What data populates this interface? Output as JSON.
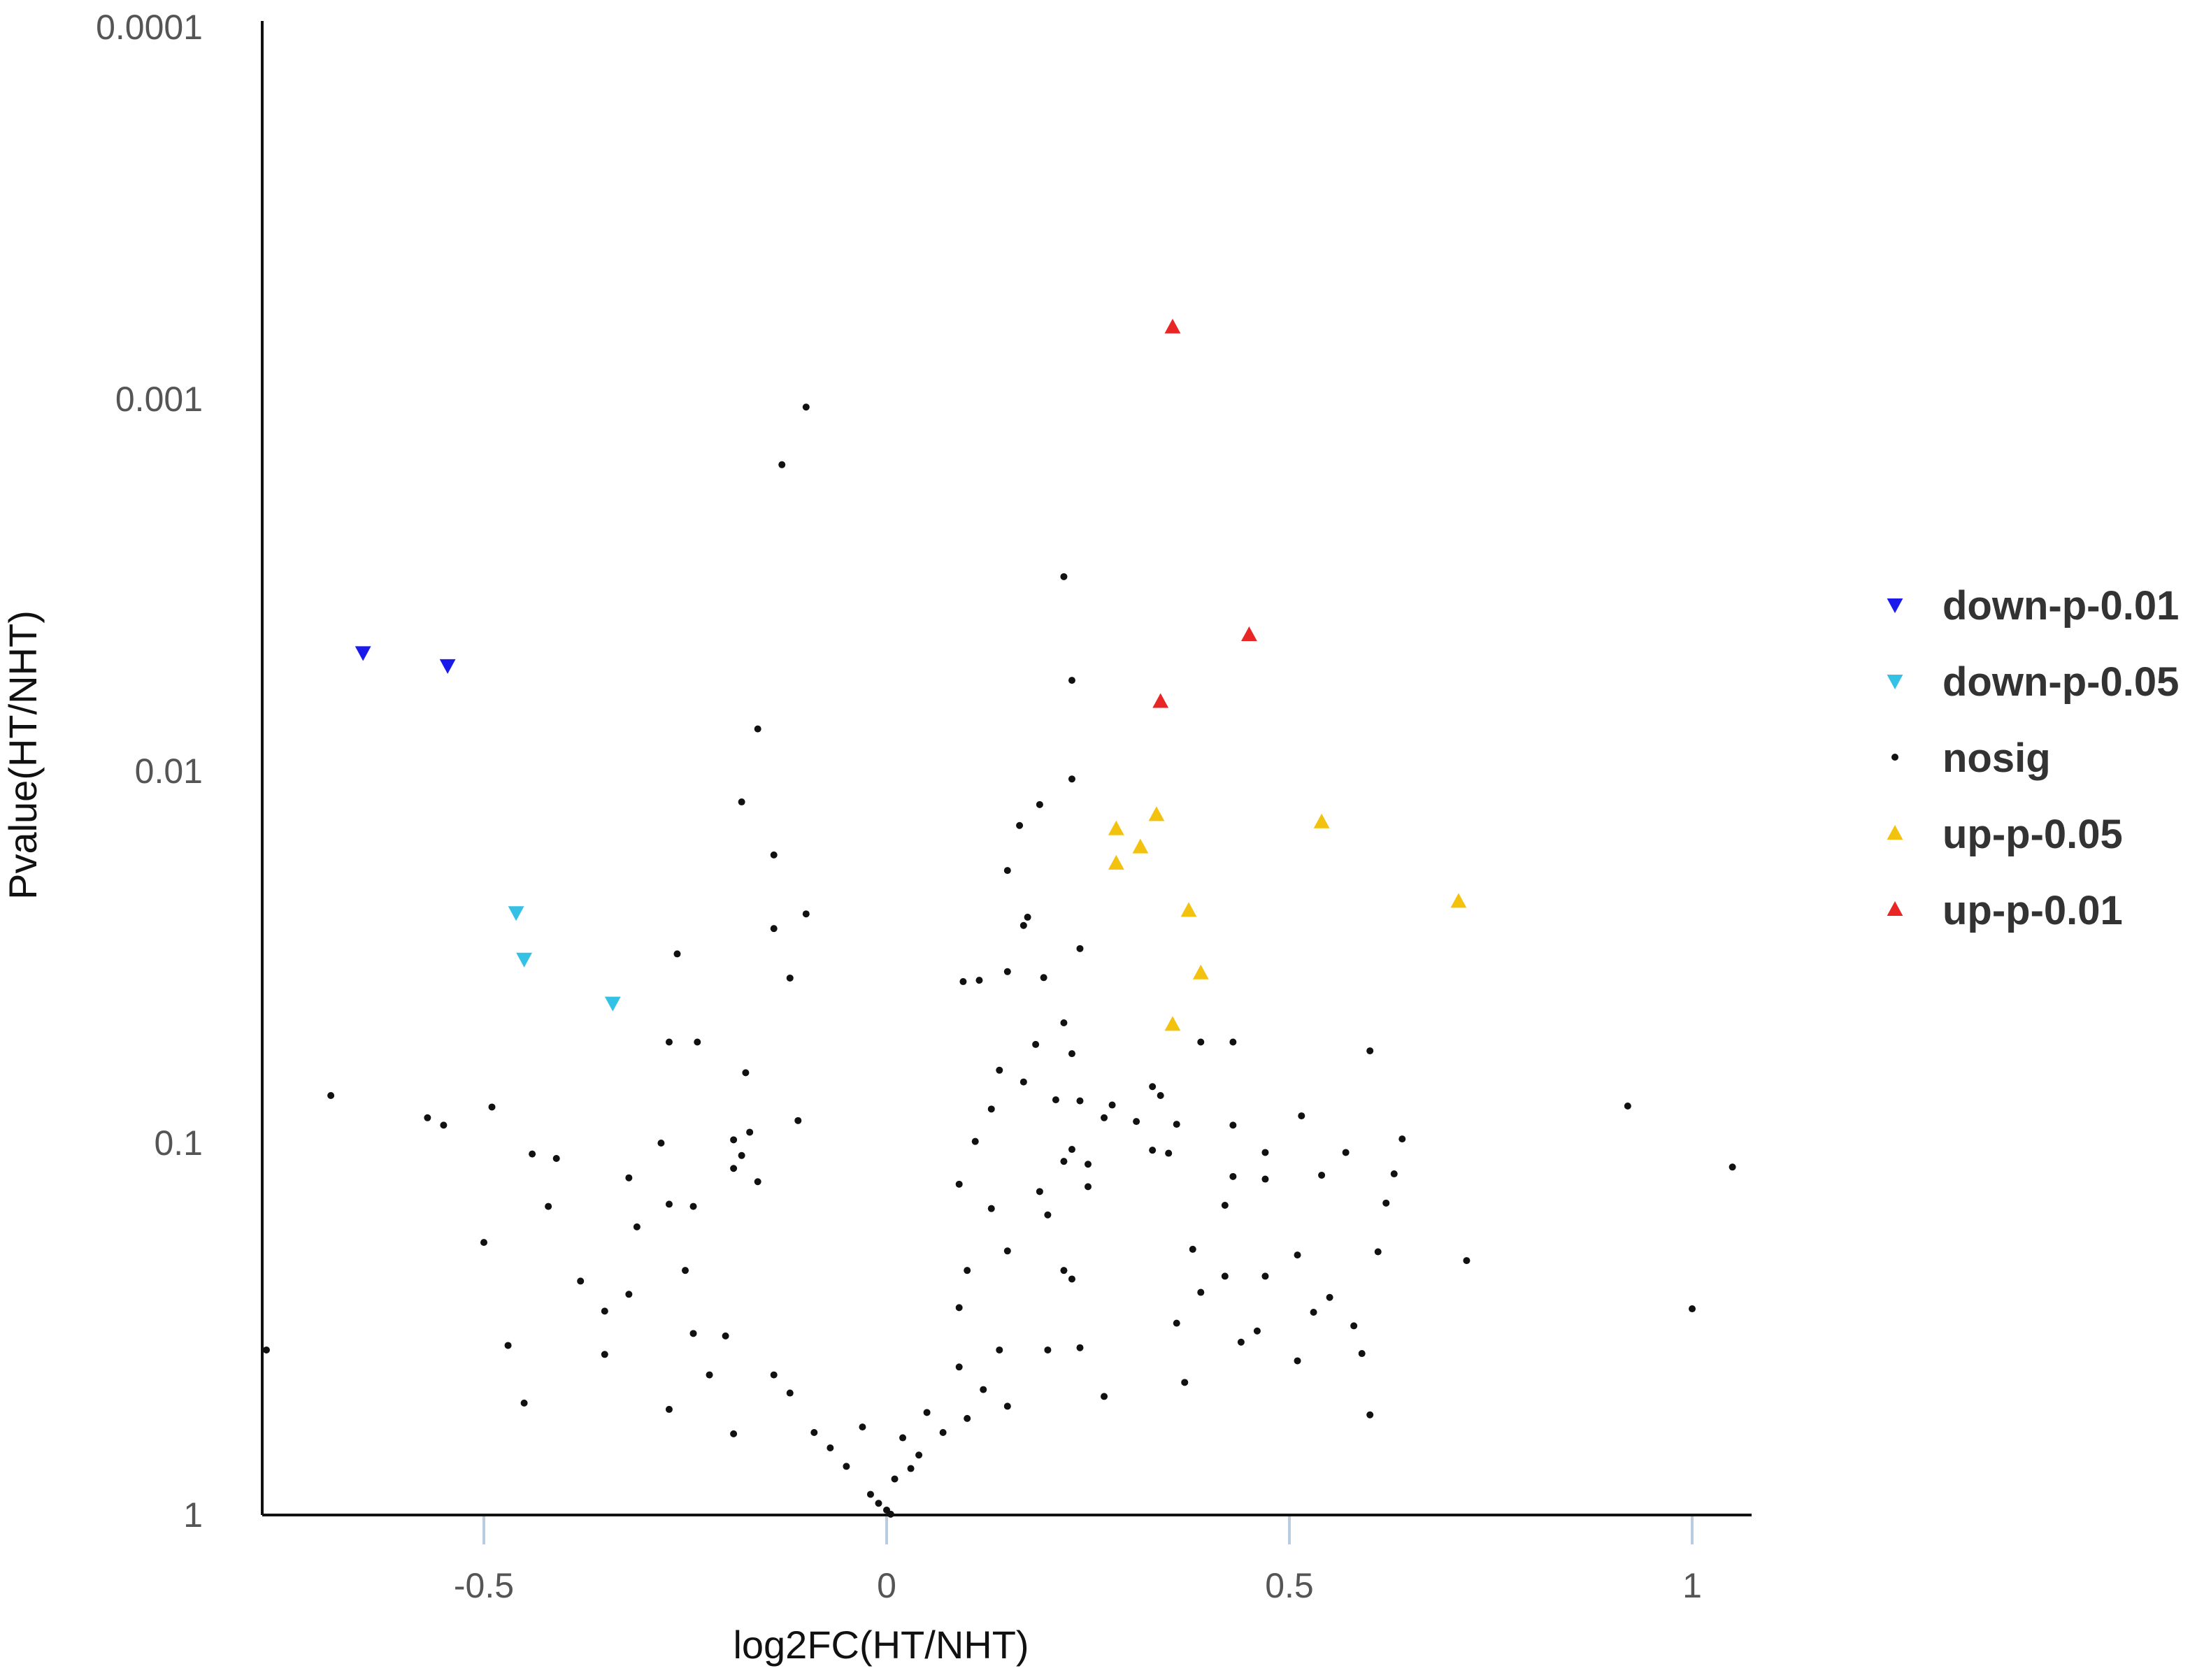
{
  "chart_data": {
    "type": "scatter",
    "title": "",
    "xlabel": "log2FC(HT/NHT)",
    "ylabel": "Pvalue(HT/NHT)",
    "xlim": [
      -0.775,
      1.07
    ],
    "ylim": [
      1,
      0.0001
    ],
    "y_scale": "log10 (reversed: 1 at bottom, 0.0001 at top)",
    "x_ticks": [
      -0.5,
      0,
      0.5,
      1
    ],
    "x_tick_labels": [
      "-0.5",
      "0",
      "0.5",
      "1"
    ],
    "y_ticks": [
      0.0001,
      0.001,
      0.01,
      0.1,
      1
    ],
    "y_tick_labels": [
      "0.0001",
      "0.001",
      "0.01",
      "0.1",
      "1"
    ],
    "grid": false,
    "legend_position": "right",
    "legend": [
      {
        "label": "down-p-0.01",
        "color": "#1a1aeb",
        "marker": "triangle-down"
      },
      {
        "label": "down-p-0.05",
        "color": "#33c1e6",
        "marker": "triangle-down"
      },
      {
        "label": "nosig",
        "color": "#111111",
        "marker": "dot"
      },
      {
        "label": "up-p-0.05",
        "color": "#f2c20f",
        "marker": "triangle-up"
      },
      {
        "label": "up-p-0.01",
        "color": "#e82626",
        "marker": "triangle-up"
      }
    ],
    "series": [
      {
        "name": "down-p-0.01",
        "points": [
          [
            -0.65,
            0.0048
          ],
          [
            -0.545,
            0.0052
          ]
        ]
      },
      {
        "name": "down-p-0.05",
        "points": [
          [
            -0.46,
            0.024
          ],
          [
            -0.45,
            0.032
          ],
          [
            -0.34,
            0.042
          ]
        ]
      },
      {
        "name": "up-p-0.01",
        "points": [
          [
            0.355,
            0.00064
          ],
          [
            0.45,
            0.0043
          ],
          [
            0.34,
            0.0065
          ]
        ]
      },
      {
        "name": "up-p-0.05",
        "points": [
          [
            0.54,
            0.0137
          ],
          [
            0.335,
            0.0131
          ],
          [
            0.285,
            0.0143
          ],
          [
            0.315,
            0.016
          ],
          [
            0.285,
            0.0177
          ],
          [
            0.71,
            0.0224
          ],
          [
            0.375,
            0.0237
          ],
          [
            0.39,
            0.0349
          ],
          [
            0.355,
            0.048
          ]
        ]
      },
      {
        "name": "nosig",
        "points": [
          [
            -0.1,
            0.00105
          ],
          [
            -0.13,
            0.0015
          ],
          [
            0.22,
            0.003
          ],
          [
            0.23,
            0.0057
          ],
          [
            -0.16,
            0.0077
          ],
          [
            -0.18,
            0.0121
          ],
          [
            0.23,
            0.0105
          ],
          [
            0.19,
            0.0123
          ],
          [
            0.165,
            0.014
          ],
          [
            -0.14,
            0.0168
          ],
          [
            0.15,
            0.0185
          ],
          [
            -0.1,
            0.0242
          ],
          [
            0.175,
            0.0247
          ],
          [
            0.17,
            0.026
          ],
          [
            -0.14,
            0.0265
          ],
          [
            0.24,
            0.03
          ],
          [
            -0.26,
            0.031
          ],
          [
            0.115,
            0.0365
          ],
          [
            0.15,
            0.0346
          ],
          [
            0.195,
            0.0359
          ],
          [
            -0.12,
            0.036
          ],
          [
            0.095,
            0.0368
          ],
          [
            0.22,
            0.0475
          ],
          [
            0.185,
            0.0543
          ],
          [
            -0.27,
            0.0535
          ],
          [
            -0.235,
            0.0535
          ],
          [
            0.23,
            0.0575
          ],
          [
            0.39,
            0.0535
          ],
          [
            0.43,
            0.0535
          ],
          [
            0.6,
            0.0565
          ],
          [
            0.14,
            0.0637
          ],
          [
            -0.69,
            0.0745
          ],
          [
            -0.175,
            0.0647
          ],
          [
            0.21,
            0.0765
          ],
          [
            0.24,
            0.077
          ],
          [
            0.28,
            0.079
          ],
          [
            0.33,
            0.0705
          ],
          [
            0.34,
            0.0745
          ],
          [
            0.17,
            0.0685
          ],
          [
            0.13,
            0.081
          ],
          [
            -0.57,
            0.0855
          ],
          [
            -0.49,
            0.08
          ],
          [
            0.92,
            0.0795
          ],
          [
            0.515,
            0.0845
          ],
          [
            0.43,
            0.0895
          ],
          [
            -0.55,
            0.0895
          ],
          [
            0.64,
            0.0975
          ],
          [
            0.27,
            0.0855
          ],
          [
            0.31,
            0.0875
          ],
          [
            0.36,
            0.089
          ],
          [
            -0.17,
            0.0935
          ],
          [
            -0.11,
            0.087
          ],
          [
            -0.19,
            0.098
          ],
          [
            -0.28,
            0.1
          ],
          [
            0.23,
            0.104
          ],
          [
            0.11,
            0.099
          ],
          [
            0.33,
            0.1045
          ],
          [
            0.35,
            0.1065
          ],
          [
            0.47,
            0.106
          ],
          [
            0.57,
            0.106
          ],
          [
            -0.44,
            0.107
          ],
          [
            -0.41,
            0.11
          ],
          [
            -0.18,
            0.108
          ],
          [
            0.25,
            0.114
          ],
          [
            1.05,
            0.116
          ],
          [
            0.22,
            0.112
          ],
          [
            -0.19,
            0.117
          ],
          [
            0.43,
            0.123
          ],
          [
            0.47,
            0.125
          ],
          [
            0.54,
            0.122
          ],
          [
            0.63,
            0.121
          ],
          [
            -0.32,
            0.124
          ],
          [
            0.09,
            0.129
          ],
          [
            -0.16,
            0.127
          ],
          [
            0.19,
            0.135
          ],
          [
            0.25,
            0.131
          ],
          [
            -0.42,
            0.148
          ],
          [
            0.42,
            0.147
          ],
          [
            0.62,
            0.145
          ],
          [
            -0.27,
            0.146
          ],
          [
            -0.24,
            0.148
          ],
          [
            0.13,
            0.15
          ],
          [
            0.2,
            0.156
          ],
          [
            -0.5,
            0.185
          ],
          [
            -0.31,
            0.168
          ],
          [
            0.38,
            0.193
          ],
          [
            0.51,
            0.2
          ],
          [
            0.72,
            0.207
          ],
          [
            0.61,
            0.196
          ],
          [
            0.15,
            0.195
          ],
          [
            -0.25,
            0.22
          ],
          [
            -0.38,
            0.235
          ],
          [
            0.42,
            0.228
          ],
          [
            0.47,
            0.228
          ],
          [
            0.1,
            0.22
          ],
          [
            0.22,
            0.22
          ],
          [
            0.23,
            0.232
          ],
          [
            -0.32,
            0.255
          ],
          [
            0.39,
            0.252
          ],
          [
            1.0,
            0.279
          ],
          [
            -0.35,
            0.283
          ],
          [
            0.09,
            0.277
          ],
          [
            0.58,
            0.31
          ],
          [
            0.46,
            0.32
          ],
          [
            0.53,
            0.285
          ],
          [
            0.55,
            0.26
          ],
          [
            -0.24,
            0.325
          ],
          [
            -0.2,
            0.33
          ],
          [
            0.36,
            0.305
          ],
          [
            -0.77,
            0.36
          ],
          [
            -0.47,
            0.35
          ],
          [
            0.59,
            0.368
          ],
          [
            0.51,
            0.385
          ],
          [
            0.24,
            0.355
          ],
          [
            0.2,
            0.36
          ],
          [
            -0.35,
            0.37
          ],
          [
            0.44,
            0.343
          ],
          [
            -0.22,
            0.42
          ],
          [
            0.37,
            0.44
          ],
          [
            -0.45,
            0.5
          ],
          [
            0.6,
            0.538
          ],
          [
            0.27,
            0.48
          ],
          [
            -0.27,
            0.52
          ],
          [
            0.05,
            0.53
          ],
          [
            0.15,
            0.51
          ],
          [
            -0.03,
            0.58
          ],
          [
            0.02,
            0.62
          ],
          [
            0.07,
            0.6
          ],
          [
            -0.19,
            0.605
          ],
          [
            -0.09,
            0.6
          ],
          [
            0.04,
            0.69
          ],
          [
            -0.05,
            0.74
          ],
          [
            0.01,
            0.8
          ],
          [
            -0.02,
            0.88
          ],
          [
            0.0,
            0.97
          ],
          [
            0.005,
            0.995
          ],
          [
            -0.01,
            0.93
          ],
          [
            0.03,
            0.75
          ],
          [
            -0.07,
            0.66
          ],
          [
            0.1,
            0.55
          ],
          [
            0.12,
            0.46
          ],
          [
            -0.12,
            0.47
          ],
          [
            -0.14,
            0.42
          ],
          [
            0.09,
            0.4
          ],
          [
            0.14,
            0.36
          ]
        ]
      }
    ]
  }
}
